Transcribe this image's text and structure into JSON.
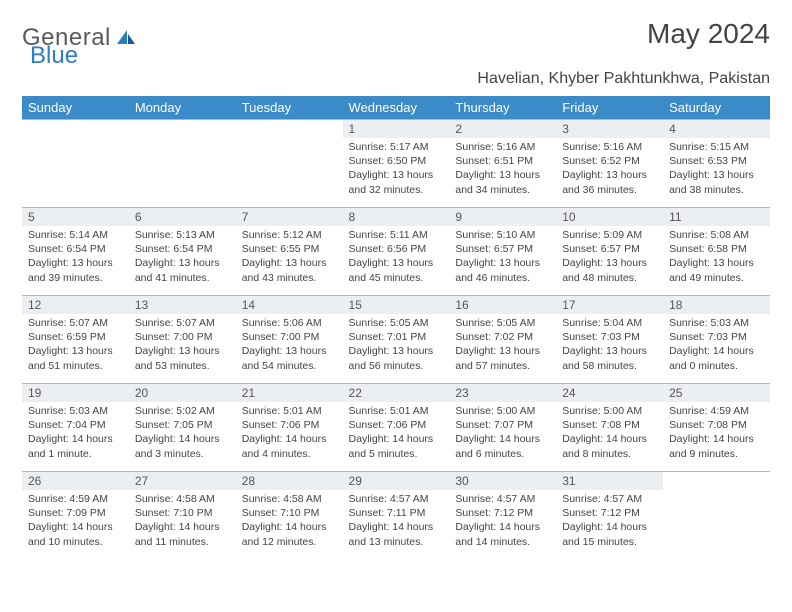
{
  "brand": {
    "part1": "General",
    "part2": "Blue"
  },
  "title": "May 2024",
  "subtitle": "Havelian, Khyber Pakhtunkhwa, Pakistan",
  "colors": {
    "header_bg": "#3b8bc9",
    "header_text": "#ffffff",
    "daynum_bg": "#eceff2",
    "border": "#aeb9c4",
    "text": "#444444",
    "brand_gray": "#5a5a5a",
    "brand_blue": "#2b7dc4"
  },
  "weekdays": [
    "Sunday",
    "Monday",
    "Tuesday",
    "Wednesday",
    "Thursday",
    "Friday",
    "Saturday"
  ],
  "weeks": [
    [
      null,
      null,
      null,
      {
        "n": "1",
        "sunrise": "5:17 AM",
        "sunset": "6:50 PM",
        "daylight": "13 hours and 32 minutes."
      },
      {
        "n": "2",
        "sunrise": "5:16 AM",
        "sunset": "6:51 PM",
        "daylight": "13 hours and 34 minutes."
      },
      {
        "n": "3",
        "sunrise": "5:16 AM",
        "sunset": "6:52 PM",
        "daylight": "13 hours and 36 minutes."
      },
      {
        "n": "4",
        "sunrise": "5:15 AM",
        "sunset": "6:53 PM",
        "daylight": "13 hours and 38 minutes."
      }
    ],
    [
      {
        "n": "5",
        "sunrise": "5:14 AM",
        "sunset": "6:54 PM",
        "daylight": "13 hours and 39 minutes."
      },
      {
        "n": "6",
        "sunrise": "5:13 AM",
        "sunset": "6:54 PM",
        "daylight": "13 hours and 41 minutes."
      },
      {
        "n": "7",
        "sunrise": "5:12 AM",
        "sunset": "6:55 PM",
        "daylight": "13 hours and 43 minutes."
      },
      {
        "n": "8",
        "sunrise": "5:11 AM",
        "sunset": "6:56 PM",
        "daylight": "13 hours and 45 minutes."
      },
      {
        "n": "9",
        "sunrise": "5:10 AM",
        "sunset": "6:57 PM",
        "daylight": "13 hours and 46 minutes."
      },
      {
        "n": "10",
        "sunrise": "5:09 AM",
        "sunset": "6:57 PM",
        "daylight": "13 hours and 48 minutes."
      },
      {
        "n": "11",
        "sunrise": "5:08 AM",
        "sunset": "6:58 PM",
        "daylight": "13 hours and 49 minutes."
      }
    ],
    [
      {
        "n": "12",
        "sunrise": "5:07 AM",
        "sunset": "6:59 PM",
        "daylight": "13 hours and 51 minutes."
      },
      {
        "n": "13",
        "sunrise": "5:07 AM",
        "sunset": "7:00 PM",
        "daylight": "13 hours and 53 minutes."
      },
      {
        "n": "14",
        "sunrise": "5:06 AM",
        "sunset": "7:00 PM",
        "daylight": "13 hours and 54 minutes."
      },
      {
        "n": "15",
        "sunrise": "5:05 AM",
        "sunset": "7:01 PM",
        "daylight": "13 hours and 56 minutes."
      },
      {
        "n": "16",
        "sunrise": "5:05 AM",
        "sunset": "7:02 PM",
        "daylight": "13 hours and 57 minutes."
      },
      {
        "n": "17",
        "sunrise": "5:04 AM",
        "sunset": "7:03 PM",
        "daylight": "13 hours and 58 minutes."
      },
      {
        "n": "18",
        "sunrise": "5:03 AM",
        "sunset": "7:03 PM",
        "daylight": "14 hours and 0 minutes."
      }
    ],
    [
      {
        "n": "19",
        "sunrise": "5:03 AM",
        "sunset": "7:04 PM",
        "daylight": "14 hours and 1 minute."
      },
      {
        "n": "20",
        "sunrise": "5:02 AM",
        "sunset": "7:05 PM",
        "daylight": "14 hours and 3 minutes."
      },
      {
        "n": "21",
        "sunrise": "5:01 AM",
        "sunset": "7:06 PM",
        "daylight": "14 hours and 4 minutes."
      },
      {
        "n": "22",
        "sunrise": "5:01 AM",
        "sunset": "7:06 PM",
        "daylight": "14 hours and 5 minutes."
      },
      {
        "n": "23",
        "sunrise": "5:00 AM",
        "sunset": "7:07 PM",
        "daylight": "14 hours and 6 minutes."
      },
      {
        "n": "24",
        "sunrise": "5:00 AM",
        "sunset": "7:08 PM",
        "daylight": "14 hours and 8 minutes."
      },
      {
        "n": "25",
        "sunrise": "4:59 AM",
        "sunset": "7:08 PM",
        "daylight": "14 hours and 9 minutes."
      }
    ],
    [
      {
        "n": "26",
        "sunrise": "4:59 AM",
        "sunset": "7:09 PM",
        "daylight": "14 hours and 10 minutes."
      },
      {
        "n": "27",
        "sunrise": "4:58 AM",
        "sunset": "7:10 PM",
        "daylight": "14 hours and 11 minutes."
      },
      {
        "n": "28",
        "sunrise": "4:58 AM",
        "sunset": "7:10 PM",
        "daylight": "14 hours and 12 minutes."
      },
      {
        "n": "29",
        "sunrise": "4:57 AM",
        "sunset": "7:11 PM",
        "daylight": "14 hours and 13 minutes."
      },
      {
        "n": "30",
        "sunrise": "4:57 AM",
        "sunset": "7:12 PM",
        "daylight": "14 hours and 14 minutes."
      },
      {
        "n": "31",
        "sunrise": "4:57 AM",
        "sunset": "7:12 PM",
        "daylight": "14 hours and 15 minutes."
      },
      null
    ]
  ],
  "labels": {
    "sunrise": "Sunrise: ",
    "sunset": "Sunset: ",
    "daylight": "Daylight: "
  }
}
